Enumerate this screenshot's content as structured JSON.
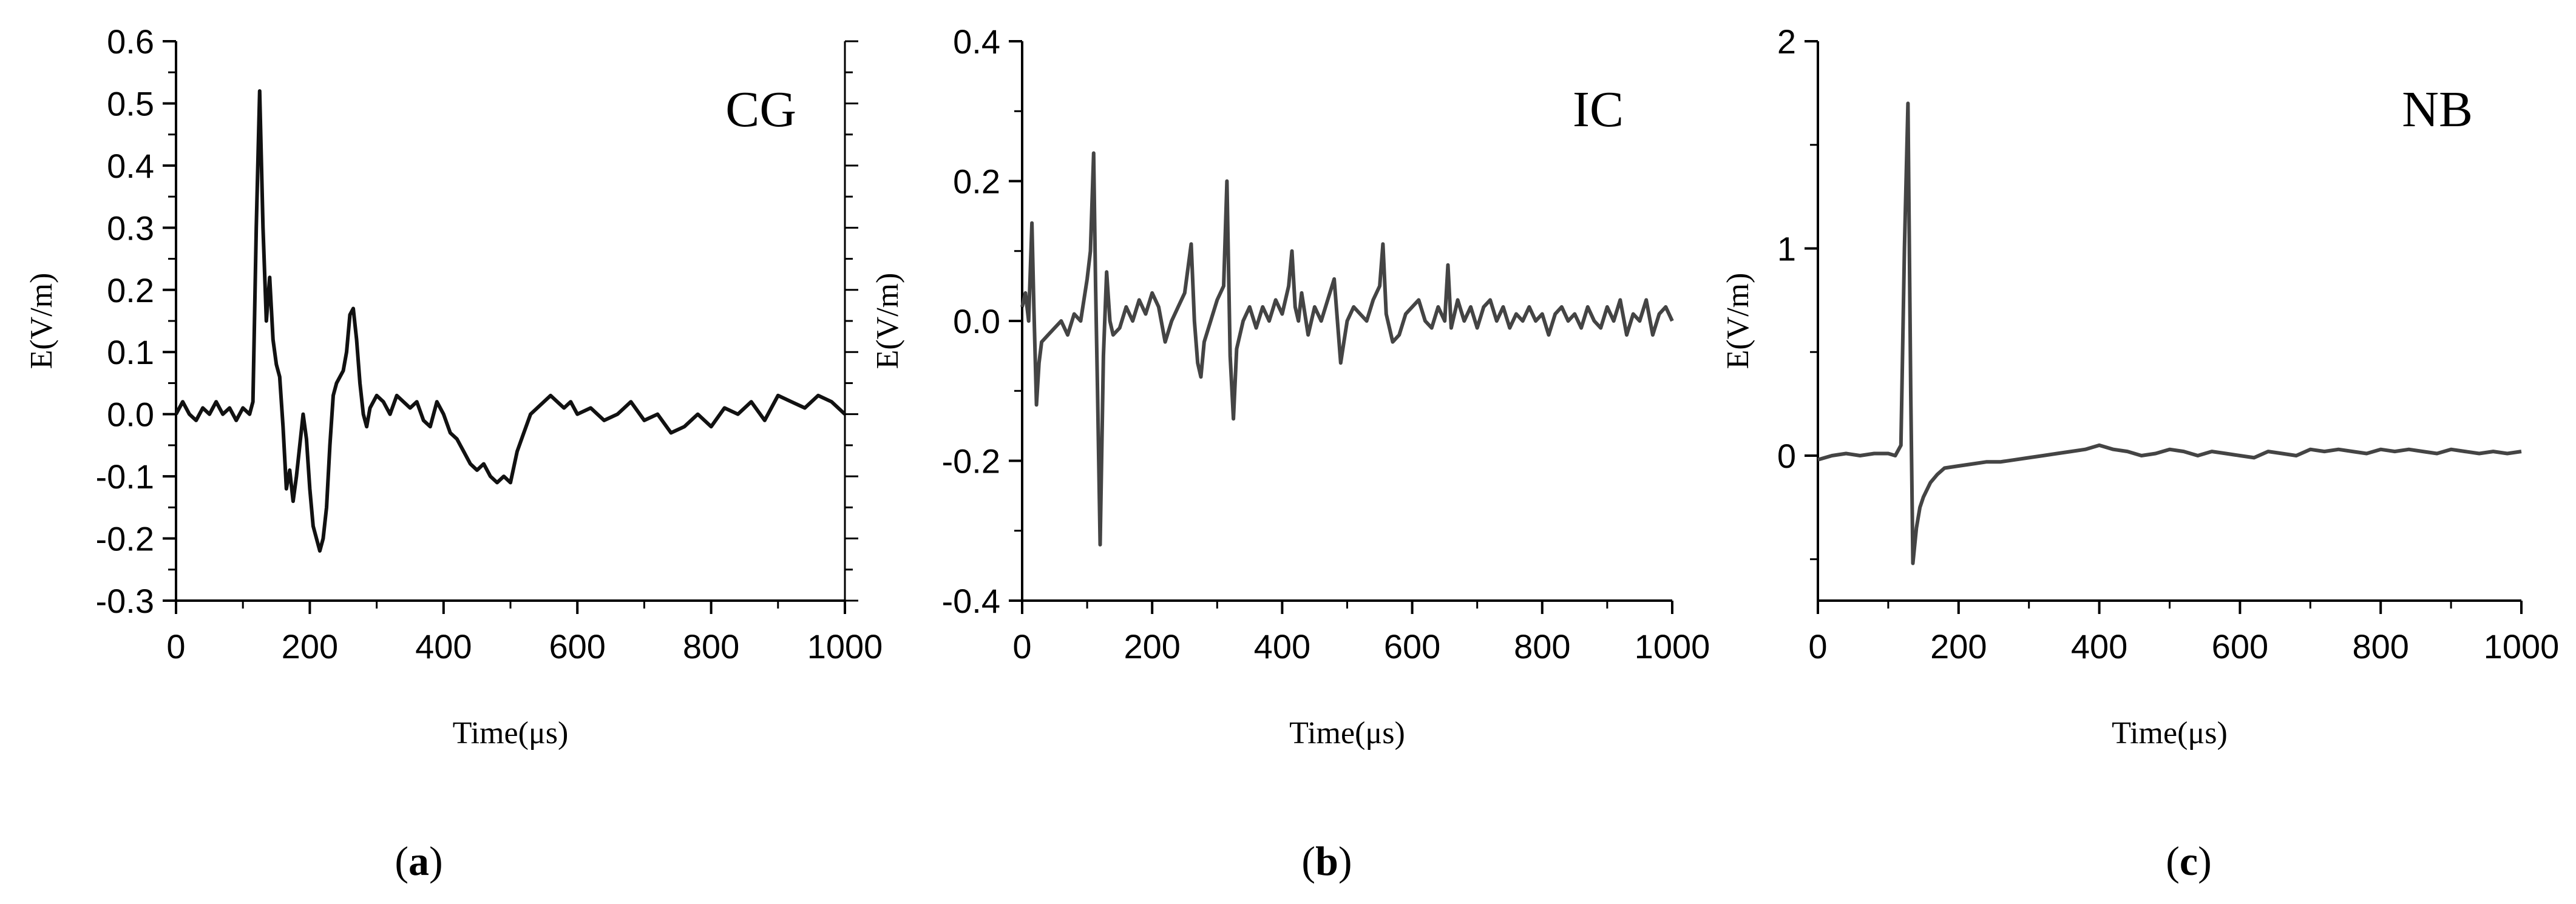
{
  "chart_data": [
    {
      "type": "line",
      "panel": "(a)",
      "panel_letter": "a",
      "title": "CG",
      "xlabel": "Time(μs)",
      "ylabel": "E(V/m)",
      "xlim": [
        0,
        1000
      ],
      "ylim": [
        -0.3,
        0.6
      ],
      "xticks": [
        0,
        200,
        400,
        600,
        800,
        1000
      ],
      "xtick_labels": [
        "0",
        "200",
        "400",
        "600",
        "800",
        "1000"
      ],
      "yticks": [
        -0.3,
        -0.2,
        -0.1,
        0.0,
        0.1,
        0.2,
        0.3,
        0.4,
        0.5,
        0.6
      ],
      "ytick_labels": [
        "-0.3",
        "-0.2",
        "-0.1",
        "0.0",
        "0.1",
        "0.2",
        "0.3",
        "0.4",
        "0.5",
        "0.6"
      ],
      "color": "#111111",
      "grid": false,
      "series": [
        {
          "x": [
            0,
            10,
            20,
            30,
            40,
            50,
            60,
            70,
            80,
            90,
            100,
            110,
            115,
            120,
            125,
            130,
            135,
            140,
            145,
            150,
            155,
            160,
            165,
            170,
            175,
            180,
            185,
            190,
            195,
            200,
            205,
            210,
            215,
            220,
            225,
            230,
            235,
            240,
            245,
            250,
            255,
            260,
            265,
            270,
            275,
            280,
            285,
            290,
            300,
            310,
            320,
            330,
            340,
            350,
            360,
            370,
            380,
            390,
            400,
            410,
            420,
            430,
            440,
            450,
            460,
            470,
            480,
            490,
            500,
            510,
            520,
            530,
            540,
            550,
            560,
            570,
            580,
            590,
            600,
            620,
            640,
            660,
            680,
            700,
            720,
            740,
            760,
            780,
            800,
            820,
            840,
            860,
            880,
            900,
            920,
            940,
            960,
            980,
            1000
          ],
          "y": [
            0.0,
            0.02,
            0.0,
            -0.01,
            0.01,
            0.0,
            0.02,
            0.0,
            0.01,
            -0.01,
            0.01,
            0.0,
            0.02,
            0.3,
            0.52,
            0.3,
            0.15,
            0.22,
            0.12,
            0.08,
            0.06,
            -0.02,
            -0.12,
            -0.09,
            -0.14,
            -0.1,
            -0.05,
            0.0,
            -0.04,
            -0.12,
            -0.18,
            -0.2,
            -0.22,
            -0.2,
            -0.15,
            -0.05,
            0.03,
            0.05,
            0.06,
            0.07,
            0.1,
            0.16,
            0.17,
            0.12,
            0.05,
            0.0,
            -0.02,
            0.01,
            0.03,
            0.02,
            0.0,
            0.03,
            0.02,
            0.01,
            0.02,
            -0.01,
            -0.02,
            0.02,
            0.0,
            -0.03,
            -0.04,
            -0.06,
            -0.08,
            -0.09,
            -0.08,
            -0.1,
            -0.11,
            -0.1,
            -0.11,
            -0.06,
            -0.03,
            0.0,
            0.01,
            0.02,
            0.03,
            0.02,
            0.01,
            0.02,
            0.0,
            0.01,
            -0.01,
            0.0,
            0.02,
            -0.01,
            0.0,
            -0.03,
            -0.02,
            0.0,
            -0.02,
            0.01,
            0.0,
            0.02,
            -0.01,
            0.03,
            0.02,
            0.01,
            0.03,
            0.02,
            0.0
          ]
        }
      ]
    },
    {
      "type": "line",
      "panel": "(b)",
      "panel_letter": "b",
      "title": "IC",
      "xlabel": "Time(μs)",
      "ylabel": "E(V/m)",
      "xlim": [
        0,
        1000
      ],
      "ylim": [
        -0.4,
        0.4
      ],
      "xticks": [
        0,
        200,
        400,
        600,
        800,
        1000
      ],
      "xtick_labels": [
        "0",
        "200",
        "400",
        "600",
        "800",
        "1000"
      ],
      "yticks": [
        -0.4,
        -0.2,
        0.0,
        0.2,
        0.4
      ],
      "ytick_labels": [
        "-0.4",
        "-0.2",
        "0.0",
        "0.2",
        "0.4"
      ],
      "color": "#444444",
      "grid": false,
      "series": [
        {
          "x": [
            0,
            5,
            10,
            15,
            18,
            22,
            26,
            30,
            40,
            50,
            60,
            70,
            80,
            90,
            100,
            105,
            110,
            113,
            116,
            120,
            125,
            130,
            135,
            140,
            150,
            160,
            170,
            180,
            190,
            200,
            210,
            220,
            230,
            240,
            250,
            260,
            265,
            270,
            275,
            280,
            290,
            300,
            310,
            315,
            320,
            325,
            330,
            340,
            350,
            360,
            370,
            380,
            390,
            400,
            410,
            415,
            420,
            425,
            430,
            440,
            450,
            460,
            470,
            480,
            490,
            495,
            500,
            510,
            520,
            530,
            540,
            550,
            555,
            560,
            570,
            580,
            590,
            600,
            610,
            620,
            630,
            640,
            650,
            655,
            660,
            670,
            680,
            690,
            700,
            710,
            720,
            730,
            740,
            750,
            760,
            770,
            780,
            790,
            800,
            810,
            820,
            830,
            840,
            850,
            860,
            870,
            880,
            890,
            900,
            910,
            920,
            930,
            940,
            950,
            960,
            970,
            980,
            990,
            1000
          ],
          "y": [
            0.02,
            0.04,
            0.0,
            0.14,
            0.02,
            -0.12,
            -0.06,
            -0.03,
            -0.02,
            -0.01,
            0.0,
            -0.02,
            0.01,
            0.0,
            0.06,
            0.1,
            0.24,
            0.05,
            -0.1,
            -0.32,
            -0.05,
            0.07,
            0.0,
            -0.02,
            -0.01,
            0.02,
            0.0,
            0.03,
            0.01,
            0.04,
            0.02,
            -0.03,
            0.0,
            0.02,
            0.04,
            0.11,
            0.0,
            -0.06,
            -0.08,
            -0.03,
            0.0,
            0.03,
            0.05,
            0.2,
            -0.05,
            -0.14,
            -0.04,
            0.0,
            0.02,
            -0.01,
            0.02,
            0.0,
            0.03,
            0.01,
            0.05,
            0.1,
            0.02,
            0.0,
            0.04,
            -0.02,
            0.02,
            0.0,
            0.03,
            0.06,
            -0.06,
            -0.03,
            0.0,
            0.02,
            0.01,
            0.0,
            0.03,
            0.05,
            0.11,
            0.01,
            -0.03,
            -0.02,
            0.01,
            0.02,
            0.03,
            0.0,
            -0.01,
            0.02,
            0.0,
            0.08,
            -0.01,
            0.03,
            0.0,
            0.02,
            -0.01,
            0.02,
            0.03,
            0.0,
            0.02,
            -0.01,
            0.01,
            0.0,
            0.02,
            0.0,
            0.01,
            -0.02,
            0.01,
            0.02,
            0.0,
            0.01,
            -0.01,
            0.02,
            0.0,
            -0.01,
            0.02,
            0.0,
            0.03,
            -0.02,
            0.01,
            0.0,
            0.03,
            -0.02,
            0.01,
            0.02,
            0.0
          ]
        }
      ]
    },
    {
      "type": "line",
      "panel": "(c)",
      "panel_letter": "c",
      "title": "NB",
      "xlabel": "Time(μs)",
      "ylabel": "E(V/m)",
      "xlim": [
        0,
        1000
      ],
      "ylim": [
        -0.7,
        2
      ],
      "xticks": [
        0,
        200,
        400,
        600,
        800,
        1000
      ],
      "xtick_labels": [
        "0",
        "200",
        "400",
        "600",
        "800",
        "1000"
      ],
      "yticks": [
        0,
        1,
        2
      ],
      "ytick_labels": [
        "0",
        "1",
        "2"
      ],
      "minor_yticks": [
        -0.5,
        0.5,
        1.5
      ],
      "color": "#444444",
      "grid": false,
      "series": [
        {
          "x": [
            0,
            20,
            40,
            60,
            80,
            100,
            110,
            118,
            123,
            128,
            132,
            135,
            140,
            145,
            150,
            160,
            170,
            180,
            200,
            220,
            240,
            260,
            280,
            300,
            320,
            340,
            360,
            380,
            400,
            420,
            440,
            460,
            480,
            500,
            520,
            540,
            560,
            580,
            600,
            620,
            640,
            660,
            680,
            700,
            720,
            740,
            760,
            780,
            800,
            820,
            840,
            860,
            880,
            900,
            920,
            940,
            960,
            980,
            1000
          ],
          "y": [
            -0.02,
            0.0,
            0.01,
            0.0,
            0.01,
            0.01,
            0.0,
            0.05,
            1.0,
            1.7,
            0.3,
            -0.52,
            -0.35,
            -0.25,
            -0.2,
            -0.13,
            -0.09,
            -0.06,
            -0.05,
            -0.04,
            -0.03,
            -0.03,
            -0.02,
            -0.01,
            0.0,
            0.01,
            0.02,
            0.03,
            0.05,
            0.03,
            0.02,
            0.0,
            0.01,
            0.03,
            0.02,
            0.0,
            0.02,
            0.01,
            0.0,
            -0.01,
            0.02,
            0.01,
            0.0,
            0.03,
            0.02,
            0.03,
            0.02,
            0.01,
            0.03,
            0.02,
            0.03,
            0.02,
            0.01,
            0.03,
            0.02,
            0.01,
            0.02,
            0.01,
            0.02
          ]
        }
      ]
    }
  ]
}
